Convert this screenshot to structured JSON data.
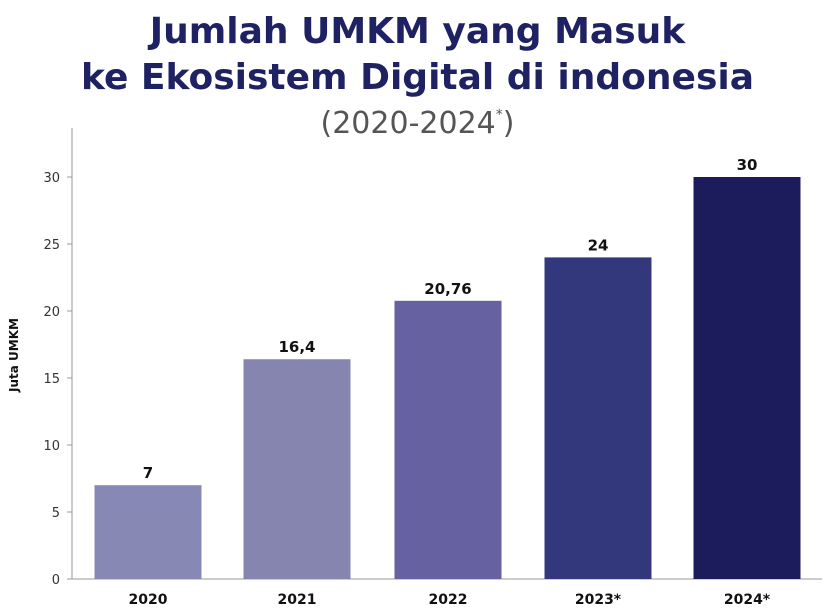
{
  "chart_data": {
    "type": "bar",
    "title_line1": "Jumlah UMKM yang Masuk",
    "title_line2": "ke Ekosistem Digital di indonesia",
    "subtitle_main": "(2020-2024",
    "subtitle_sup": "*",
    "subtitle_close": ")",
    "ylabel": "Juta UMKM",
    "xlabel": "",
    "categories": [
      "2020",
      "2021",
      "2022",
      "2023*",
      "2024*"
    ],
    "values": [
      7,
      16.4,
      20.76,
      24,
      30
    ],
    "value_labels": [
      "7",
      "16,4",
      "20,76",
      "24",
      "30"
    ],
    "ylim": [
      0,
      30
    ],
    "yticks": [
      0,
      5,
      10,
      15,
      20,
      25,
      30
    ],
    "grid": false,
    "bar_colors": [
      "#8888b4",
      "#8585b0",
      "#6662a2",
      "#33387c",
      "#1c1b5c"
    ],
    "title_color": "#1e2262"
  }
}
